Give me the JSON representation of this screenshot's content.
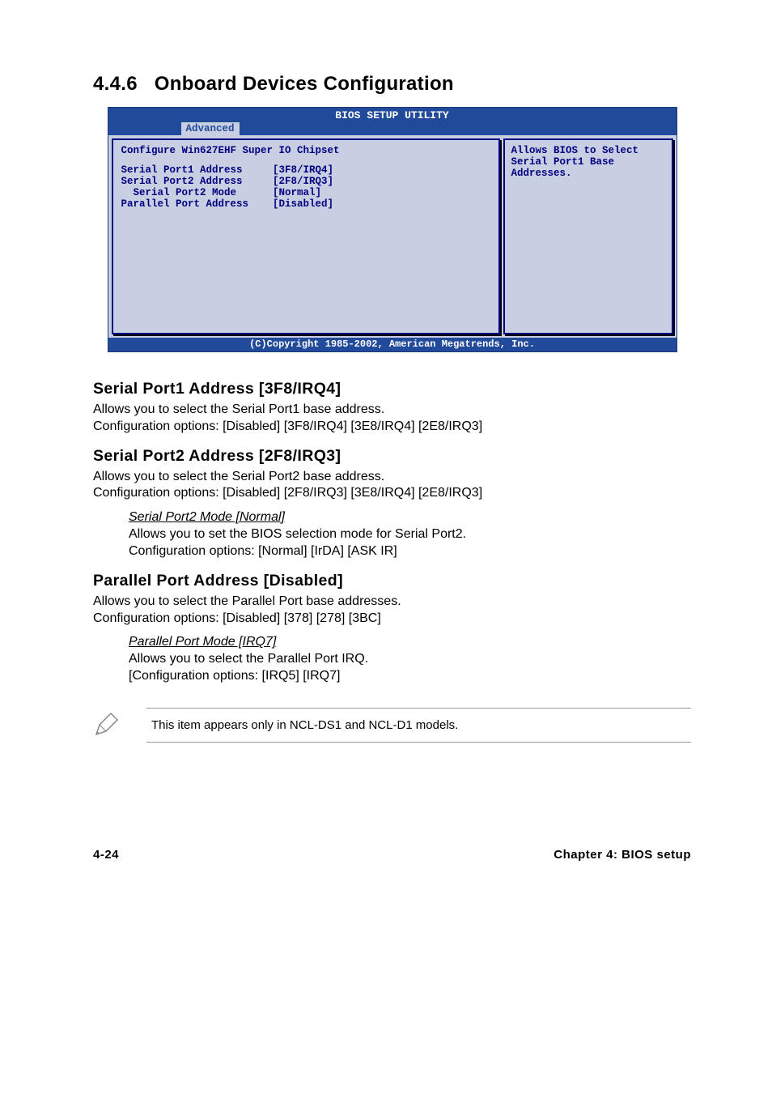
{
  "section": {
    "number": "4.4.6",
    "title": "Onboard Devices Configuration"
  },
  "bios": {
    "window_title": "BIOS SETUP UTILITY",
    "active_tab": "Advanced",
    "left_title": "Configure Win627EHF Super IO Chipset",
    "rows": [
      {
        "label": "Serial Port1 Address",
        "value": "[3F8/IRQ4]",
        "indent": 0
      },
      {
        "label": "Serial Port2 Address",
        "value": "[2F8/IRQ3]",
        "indent": 0
      },
      {
        "label": "Serial Port2 Mode",
        "value": "[Normal]",
        "indent": 1
      },
      {
        "label": "Parallel Port Address",
        "value": "[Disabled]",
        "indent": 0
      }
    ],
    "help_text": "Allows BIOS to Select Serial Port1 Base Addresses.",
    "copyright": "(C)Copyright 1985-2002, American Megatrends, Inc.",
    "colors": {
      "header_bg": "#224a9b",
      "body_bg": "#c9cfe2",
      "text": "#000080",
      "header_text": "#ffffff"
    }
  },
  "settings": [
    {
      "heading": "Serial Port1 Address [3F8/IRQ4]",
      "body1": "Allows you to select the Serial Port1 base address.",
      "body2": "Configuration options: [Disabled] [3F8/IRQ4] [3E8/IRQ4] [2E8/IRQ3]"
    },
    {
      "heading": "Serial Port2 Address [2F8/IRQ3]",
      "body1": "Allows you to select the Serial Port2 base address.",
      "body2": "Configuration options: [Disabled] [2F8/IRQ3] [3E8/IRQ4] [2E8/IRQ3]",
      "sub": {
        "title": "Serial Port2 Mode [Normal]",
        "body1": "Allows you to set the BIOS selection mode for Serial Port2.",
        "body2": "Configuration options: [Normal] [IrDA] [ASK IR]"
      }
    },
    {
      "heading": "Parallel Port Address [Disabled]",
      "body1": "Allows you to select the Parallel Port base addresses.",
      "body2": "Configuration options: [Disabled] [378] [278] [3BC]",
      "sub": {
        "title": "Parallel Port Mode [IRQ7]",
        "body1": "Allows you to select the Parallel Port IRQ.",
        "body2": "[Configuration options: [IRQ5] [IRQ7]"
      }
    }
  ],
  "note": {
    "text": "This item appears only in NCL-DS1 and NCL-D1 models."
  },
  "footer": {
    "left": "4-24",
    "right": "Chapter 4: BIOS setup"
  }
}
